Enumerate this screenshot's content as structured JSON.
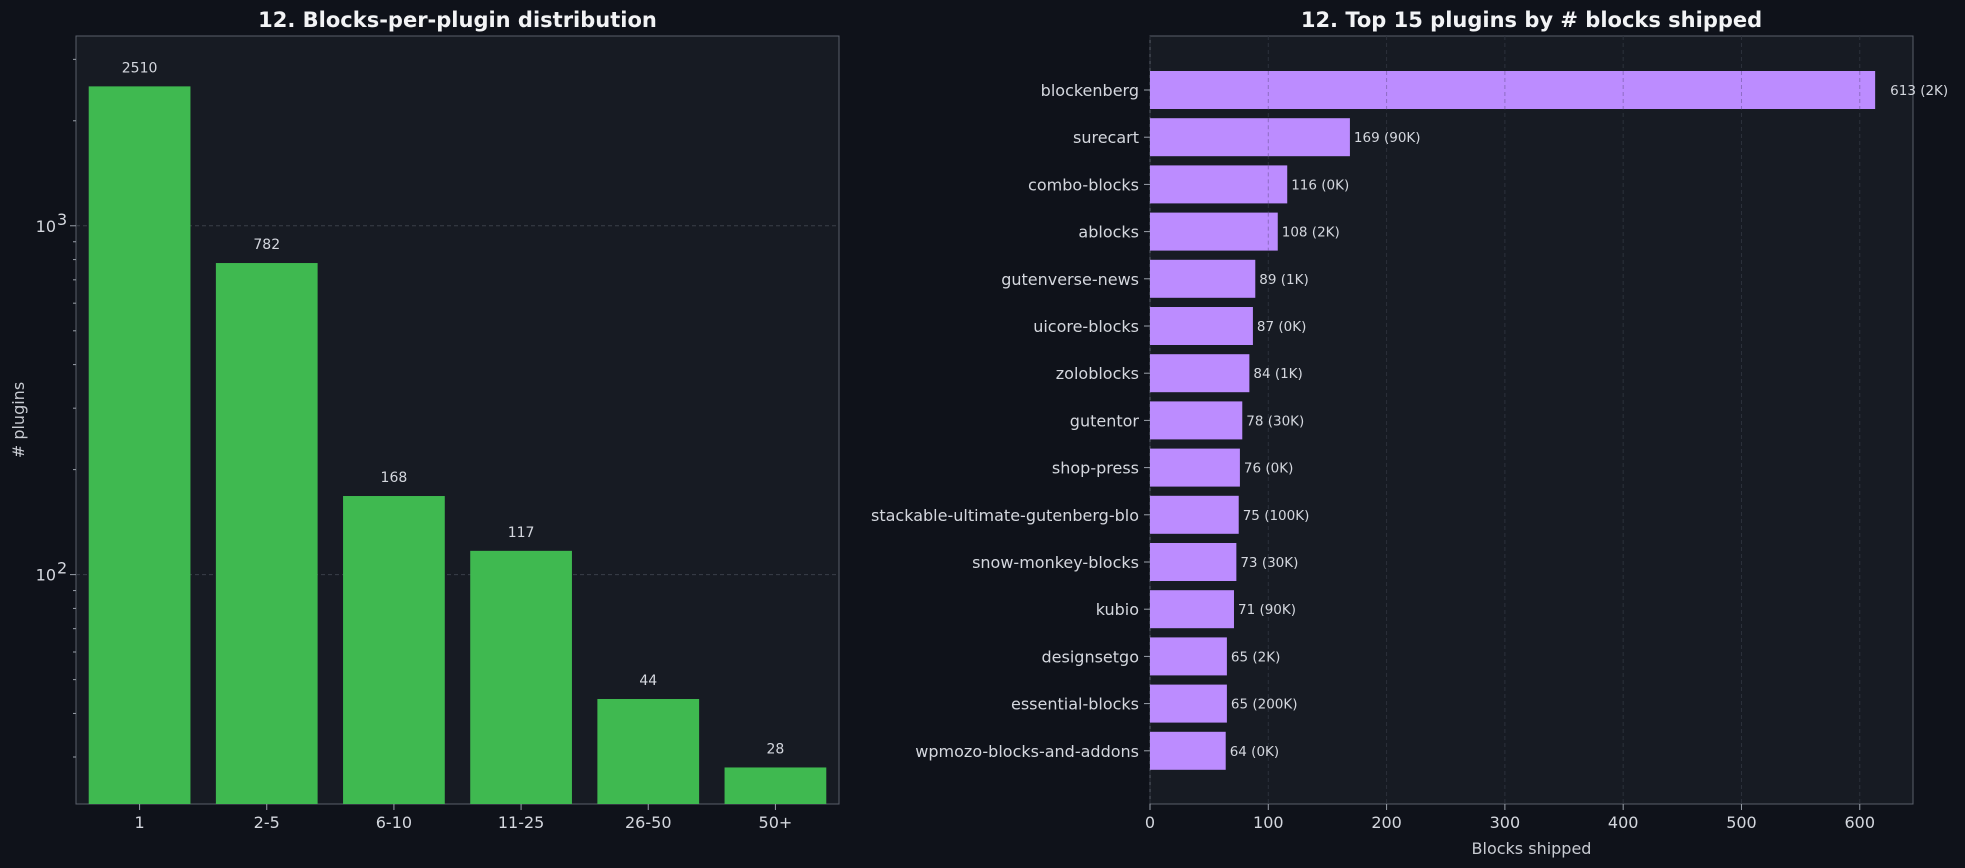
{
  "chart_data": [
    {
      "type": "bar",
      "title": "12. Blocks-per-plugin distribution",
      "xlabel": "",
      "ylabel": "# plugins",
      "yscale": "log",
      "ylim": [
        22,
        3500
      ],
      "yticks": [
        {
          "value": 100,
          "base": "10",
          "exp": "2"
        },
        {
          "value": 1000,
          "base": "10",
          "exp": "3"
        }
      ],
      "grid": true,
      "categories": [
        "1",
        "2-5",
        "6-10",
        "11-25",
        "26-50",
        "50+"
      ],
      "values": [
        2510,
        782,
        168,
        117,
        44,
        28
      ],
      "data_labels": [
        "2510",
        "782",
        "168",
        "117",
        "44",
        "28"
      ],
      "color": "#3fb950"
    },
    {
      "type": "bar",
      "orientation": "horizontal",
      "title": "12. Top 15 plugins by # blocks shipped",
      "xlabel": "Blocks shipped",
      "ylabel": "",
      "xlim": [
        0,
        645
      ],
      "xticks": [
        "0",
        "100",
        "200",
        "300",
        "400",
        "500",
        "600"
      ],
      "grid": true,
      "categories": [
        "blockenberg",
        "surecart",
        "combo-blocks",
        "ablocks",
        "gutenverse-news",
        "uicore-blocks",
        "zoloblocks",
        "gutentor",
        "shop-press",
        "stackable-ultimate-gutenberg-blo",
        "snow-monkey-blocks",
        "kubio",
        "designsetgo",
        "essential-blocks",
        "wpmozo-blocks-and-addons"
      ],
      "values": [
        613,
        169,
        116,
        108,
        89,
        87,
        84,
        78,
        76,
        75,
        73,
        71,
        65,
        65,
        64
      ],
      "data_labels": [
        "613  (2K)",
        "169  (90K)",
        "116  (0K)",
        "108  (2K)",
        "89  (1K)",
        "87  (0K)",
        "84  (1K)",
        "78  (30K)",
        "76  (0K)",
        "75  (100K)",
        "73  (30K)",
        "71  (90K)",
        "65  (2K)",
        "65  (200K)",
        "64  (0K)"
      ],
      "color": "#bc8cff"
    }
  ]
}
